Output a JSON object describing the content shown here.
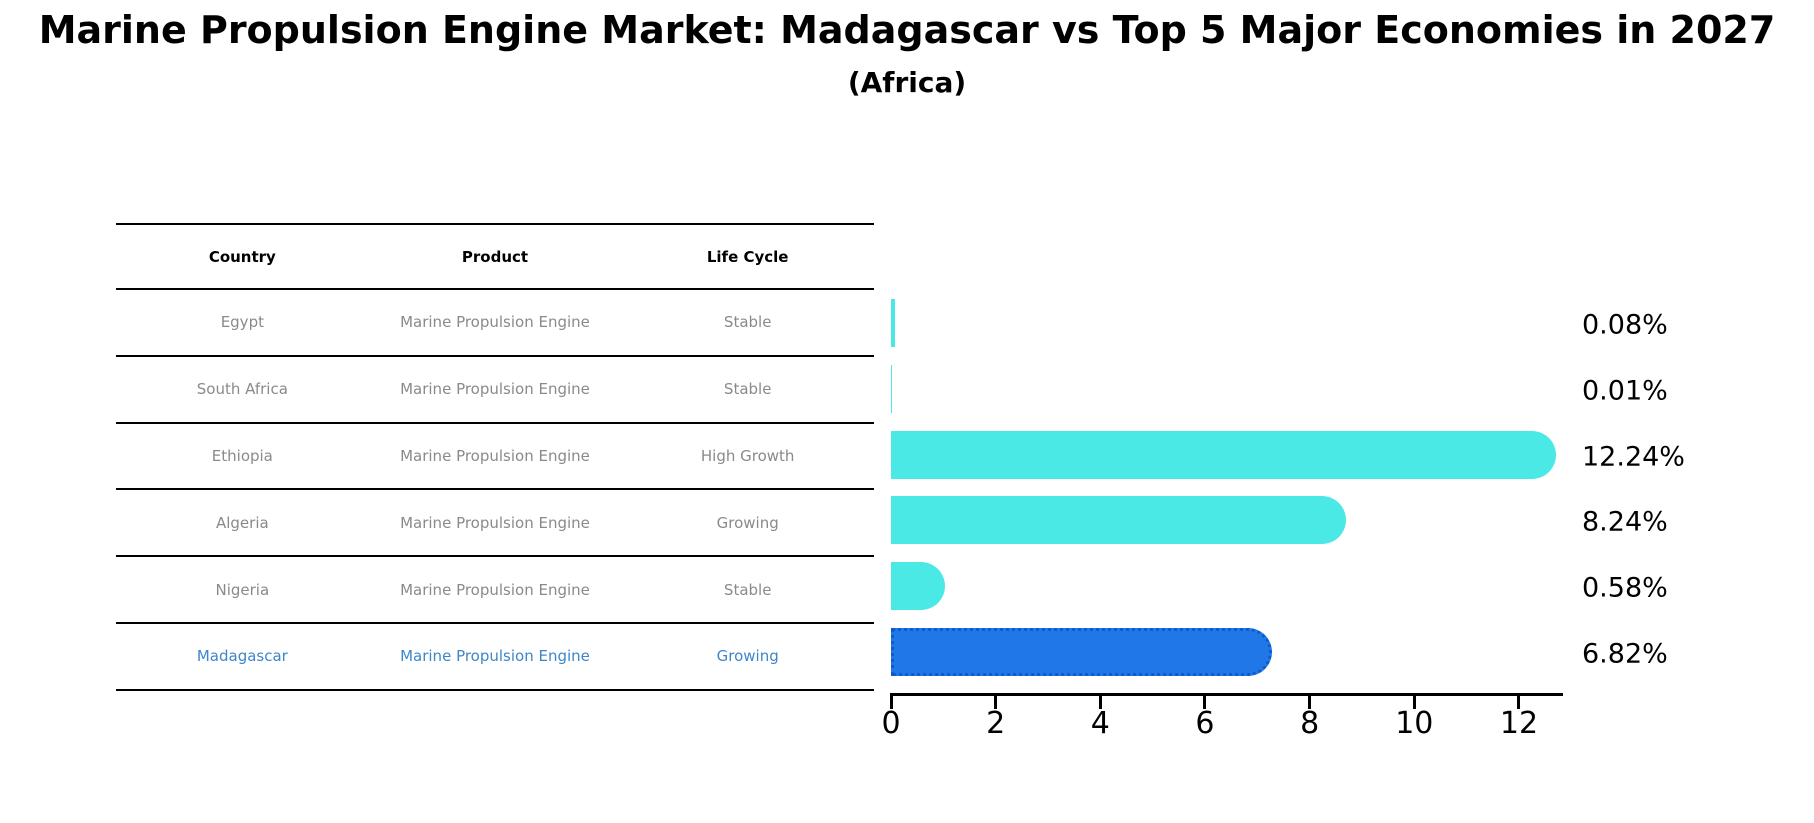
{
  "title": "Marine Propulsion Engine Market: Madagascar vs Top 5 Major Economies in 2027",
  "subtitle": "(Africa)",
  "table": {
    "headers": [
      "Country",
      "Product",
      "Life Cycle"
    ],
    "rows": [
      {
        "country": "Egypt",
        "product": "Marine Propulsion Engine",
        "life_cycle": "Stable",
        "highlight": false
      },
      {
        "country": "South Africa",
        "product": "Marine Propulsion Engine",
        "life_cycle": "Stable",
        "highlight": false
      },
      {
        "country": "Ethiopia",
        "product": "Marine Propulsion Engine",
        "life_cycle": "High Growth",
        "highlight": false
      },
      {
        "country": "Algeria",
        "product": "Marine Propulsion Engine",
        "life_cycle": "Growing",
        "highlight": false
      },
      {
        "country": "Nigeria",
        "product": "Marine Propulsion Engine",
        "life_cycle": "Stable",
        "highlight": false
      },
      {
        "country": "Madagascar",
        "product": "Marine Propulsion Engine",
        "life_cycle": "Growing",
        "highlight": true
      }
    ]
  },
  "chart_data": {
    "type": "bar",
    "orientation": "horizontal",
    "title": "Marine Propulsion Engine Market: Madagascar vs Top 5 Major Economies in 2027 (Africa)",
    "categories": [
      "Egypt",
      "South Africa",
      "Ethiopia",
      "Algeria",
      "Nigeria",
      "Madagascar"
    ],
    "values": [
      0.08,
      0.01,
      12.24,
      8.24,
      0.58,
      6.82
    ],
    "value_labels": [
      "0.08%",
      "0.01%",
      "12.24%",
      "8.24%",
      "0.58%",
      "6.82%"
    ],
    "x_ticks": [
      0,
      2,
      4,
      6,
      8,
      10,
      12
    ],
    "x_tick_labels": [
      "0",
      "2",
      "4",
      "6",
      "8",
      "10",
      "12"
    ],
    "xlim": [
      0,
      12.85
    ],
    "grid": false,
    "legend": false,
    "highlight_index": 5,
    "bar_color": "#4BE9E6",
    "highlight_bar_color": "#2078E8",
    "highlight_border_color": "#0F5CC9",
    "highlight_text_color": "#3E86C8",
    "table_text_color": "#8a8a8a"
  }
}
